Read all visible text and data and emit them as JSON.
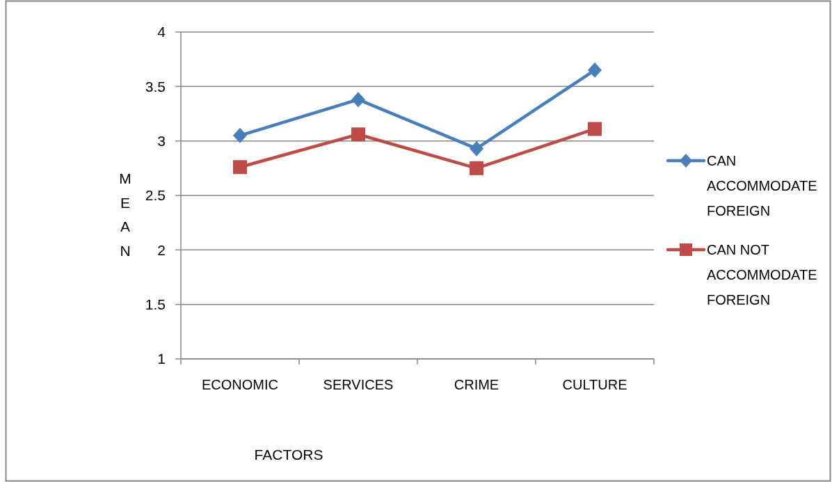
{
  "chart_data": {
    "type": "line",
    "xlabel": "FACTORS",
    "ylabel": "MEAN",
    "categories": [
      "ECONOMIC",
      "SERVICES",
      "CRIME",
      "CULTURE"
    ],
    "series": [
      {
        "name": "CAN ACCOMMODATE FOREIGN",
        "color": "#4a7ebb",
        "marker": "diamond",
        "values": [
          3.05,
          3.38,
          2.93,
          3.65
        ]
      },
      {
        "name": "CAN NOT ACCOMMODATE FOREIGN",
        "color": "#be4b48",
        "marker": "square",
        "values": [
          2.76,
          3.06,
          2.75,
          3.11
        ]
      }
    ],
    "ylim": [
      1,
      4
    ],
    "yticks": [
      1,
      1.5,
      2,
      2.5,
      3,
      3.5,
      4
    ],
    "grid": "y",
    "legend": "right",
    "line_style": "solid"
  }
}
